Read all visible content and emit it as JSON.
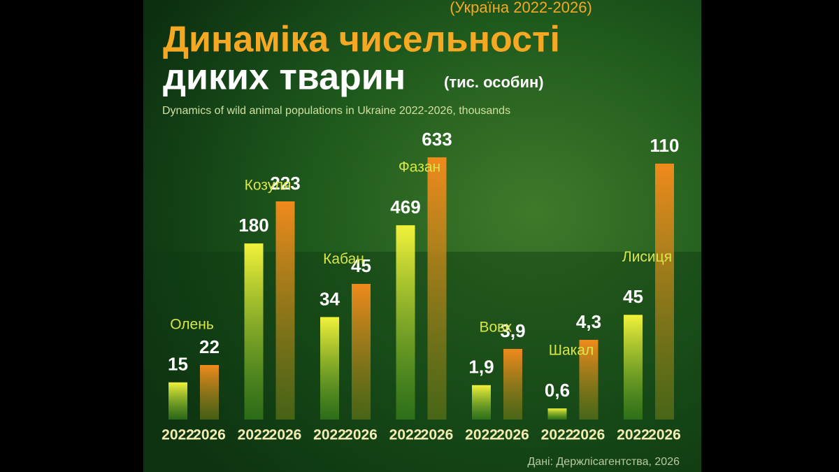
{
  "chart_data": {
    "type": "bar",
    "header": "(Україна 2022-2026)",
    "title": "Динаміка чисельності",
    "title_line2": "диких тварин",
    "unit": "(тис. особин)",
    "subtitle": "Dynamics of wild animal populations in Ukraine 2022-2026, thousands",
    "source": "Дані: Держлісагентства, 2026",
    "categories": [
      "Олень",
      "Козуля",
      "Кабан",
      "Фазан",
      "Вовк",
      "Шакал",
      "Лисиця"
    ],
    "series": [
      {
        "name": "2022",
        "color": "#e6e636",
        "values": [
          15,
          180,
          34,
          469,
          1.9,
          0.6,
          45
        ],
        "value_labels": [
          "15",
          "180",
          "34",
          "469",
          "1,9",
          "0,6",
          "45"
        ]
      },
      {
        "name": "2026",
        "color": "#f08a1c",
        "values": [
          22,
          223,
          45,
          633,
          3.9,
          4.3,
          110
        ],
        "value_labels": [
          "22",
          "223",
          "45",
          "633",
          "3,9",
          "4,3",
          "110"
        ]
      }
    ]
  }
}
